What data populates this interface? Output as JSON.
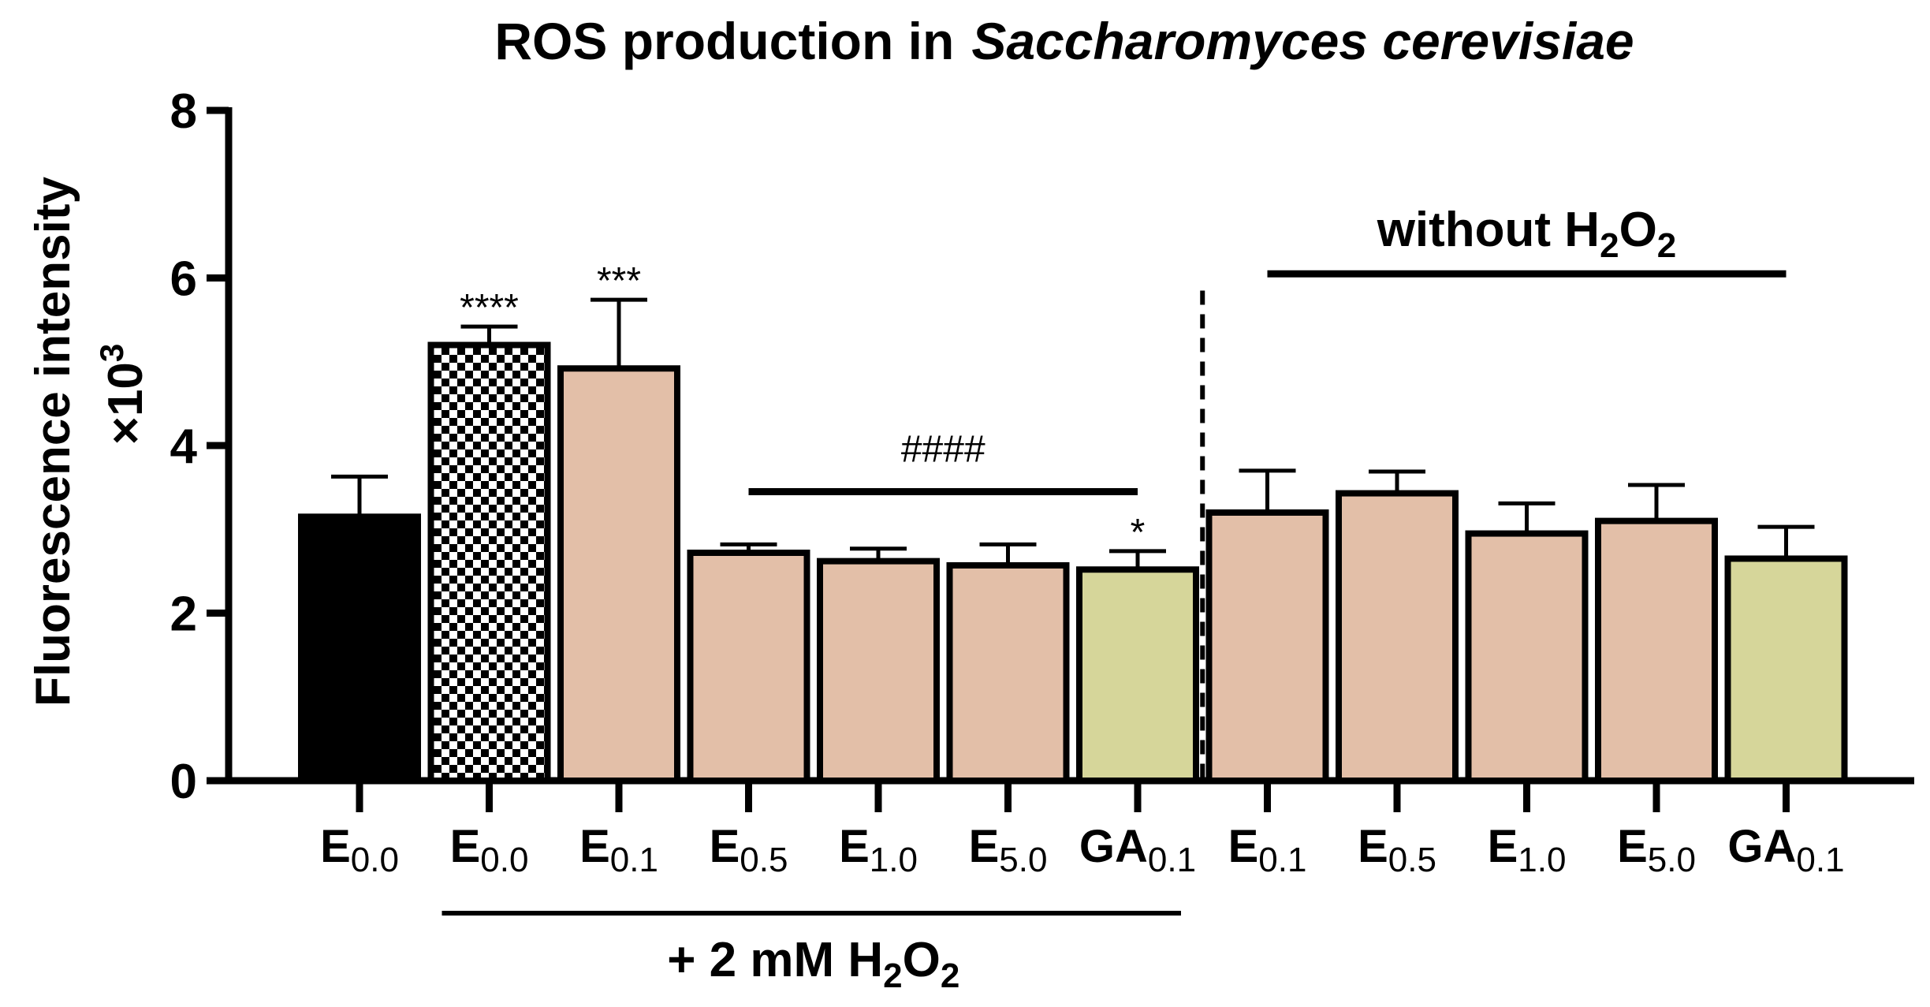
{
  "chart_data": {
    "type": "bar",
    "title": {
      "prefix": "ROS production in",
      "species": "Saccharomyces cerevisiae"
    },
    "ylabel": {
      "line1": "Fluorescence intensity",
      "line2_prefix": "×10",
      "line2_sup": "3"
    },
    "ylim": [
      0,
      8
    ],
    "yticks": [
      "0",
      "2",
      "4",
      "6",
      "8"
    ],
    "categories": [
      {
        "main": "E",
        "sub": "0.0",
        "value": 3.15,
        "error": 0.48,
        "fill": "#000000",
        "pattern": "solid",
        "annotation": ""
      },
      {
        "main": "E",
        "sub": "0.0",
        "value": 5.2,
        "error": 0.22,
        "fill": "#ffffff",
        "pattern": "checker",
        "annotation": "****"
      },
      {
        "main": "E",
        "sub": "0.1",
        "value": 4.92,
        "error": 0.82,
        "fill": "#e3bfa8",
        "pattern": "solid",
        "annotation": "***"
      },
      {
        "main": "E",
        "sub": "0.5",
        "value": 2.72,
        "error": 0.1,
        "fill": "#e3bfa8",
        "pattern": "solid",
        "annotation": ""
      },
      {
        "main": "E",
        "sub": "1.0",
        "value": 2.62,
        "error": 0.15,
        "fill": "#e3bfa8",
        "pattern": "solid",
        "annotation": ""
      },
      {
        "main": "E",
        "sub": "5.0",
        "value": 2.57,
        "error": 0.25,
        "fill": "#e3bfa8",
        "pattern": "solid",
        "annotation": ""
      },
      {
        "main": "GA",
        "sub": "0.1",
        "value": 2.52,
        "error": 0.22,
        "fill": "#d6d69a",
        "pattern": "solid",
        "annotation": "*"
      },
      {
        "main": "E",
        "sub": "0.1",
        "value": 3.2,
        "error": 0.5,
        "fill": "#e3bfa8",
        "pattern": "solid",
        "annotation": ""
      },
      {
        "main": "E",
        "sub": "0.5",
        "value": 3.43,
        "error": 0.26,
        "fill": "#e3bfa8",
        "pattern": "solid",
        "annotation": ""
      },
      {
        "main": "E",
        "sub": "1.0",
        "value": 2.95,
        "error": 0.36,
        "fill": "#e3bfa8",
        "pattern": "solid",
        "annotation": ""
      },
      {
        "main": "E",
        "sub": "5.0",
        "value": 3.1,
        "error": 0.43,
        "fill": "#e3bfa8",
        "pattern": "solid",
        "annotation": ""
      },
      {
        "main": "GA",
        "sub": "0.1",
        "value": 2.65,
        "error": 0.38,
        "fill": "#d6d69a",
        "pattern": "solid",
        "annotation": ""
      }
    ],
    "significance_bar": {
      "label": "####",
      "from_index": 3,
      "to_index": 6,
      "y": 3.45
    },
    "groups": {
      "with_h2o2": {
        "prefix": "+ 2 mM H",
        "sub1": "2",
        "mid": "O",
        "sub2": "2",
        "from_index": 1,
        "to_index": 6
      },
      "without_h2o2": {
        "prefix": "without H",
        "sub1": "2",
        "mid": "O",
        "sub2": "2",
        "from_index": 7,
        "to_index": 11,
        "y": 6.05
      }
    },
    "divider": {
      "between_index": 6,
      "style": "dashed"
    },
    "grid": false,
    "legend": "none"
  }
}
